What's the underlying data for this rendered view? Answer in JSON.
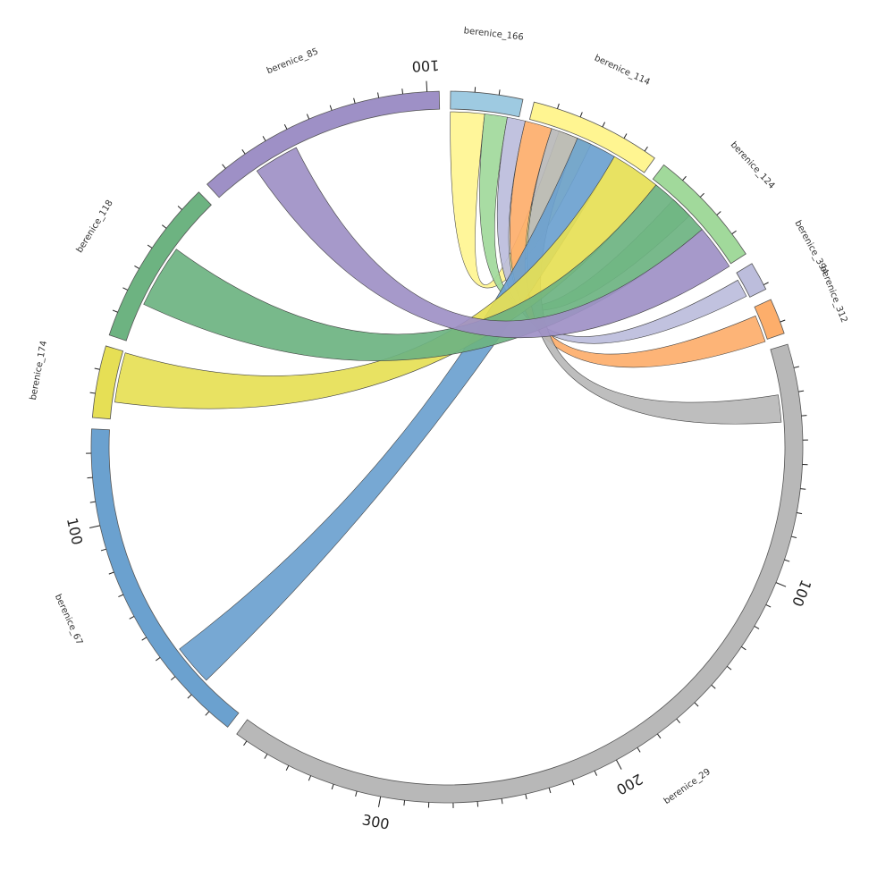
{
  "chart_data": {
    "type": "chord",
    "segments": [
      {
        "name": "berenice_166",
        "color": "#9ecae1",
        "length": 30
      },
      {
        "name": "berenice_114",
        "color": "#fff591",
        "length": 55
      },
      {
        "name": "berenice_124",
        "color": "#a1d99b",
        "length": 50
      },
      {
        "name": "berenice_394",
        "color": "#bcbddc",
        "length": 12
      },
      {
        "name": "berenice_312",
        "color": "#fdae6b",
        "length": 15
      },
      {
        "name": "berenice_29",
        "color": "#b8b8b8",
        "length": 365
      },
      {
        "name": "berenice_67",
        "color": "#6ba1cf",
        "length": 140
      },
      {
        "name": "berenice_174",
        "color": "#e6df55",
        "length": 30
      },
      {
        "name": "berenice_118",
        "color": "#6db381",
        "length": 70
      },
      {
        "name": "berenice_85",
        "color": "#9e90c6",
        "length": 105
      }
    ],
    "major_tick_labels": [
      {
        "segment": "berenice_85",
        "value": 100,
        "label": "100"
      },
      {
        "segment": "berenice_67",
        "value": 100,
        "label": "100"
      },
      {
        "segment": "berenice_29",
        "value": 100,
        "label": "100"
      },
      {
        "segment": "berenice_29",
        "value": 200,
        "label": "200"
      },
      {
        "segment": "berenice_29",
        "value": 300,
        "label": "300"
      }
    ],
    "links": [
      {
        "source": "berenice_166",
        "target": "berenice_114",
        "width": 15
      },
      {
        "source": "berenice_166",
        "target": "berenice_124",
        "width": 10
      },
      {
        "source": "berenice_166",
        "target": "berenice_394",
        "width": 8
      },
      {
        "source": "berenice_166",
        "target": "berenice_312",
        "width": 12
      },
      {
        "source": "berenice_166",
        "target": "berenice_29",
        "width": 12
      },
      {
        "source": "berenice_166",
        "target": "berenice_67",
        "width": 18
      },
      {
        "source": "berenice_166",
        "target": "berenice_174",
        "width": 22
      },
      {
        "source": "berenice_166",
        "target": "berenice_118",
        "width": 28
      },
      {
        "source": "berenice_166",
        "target": "berenice_85",
        "width": 20
      }
    ]
  }
}
